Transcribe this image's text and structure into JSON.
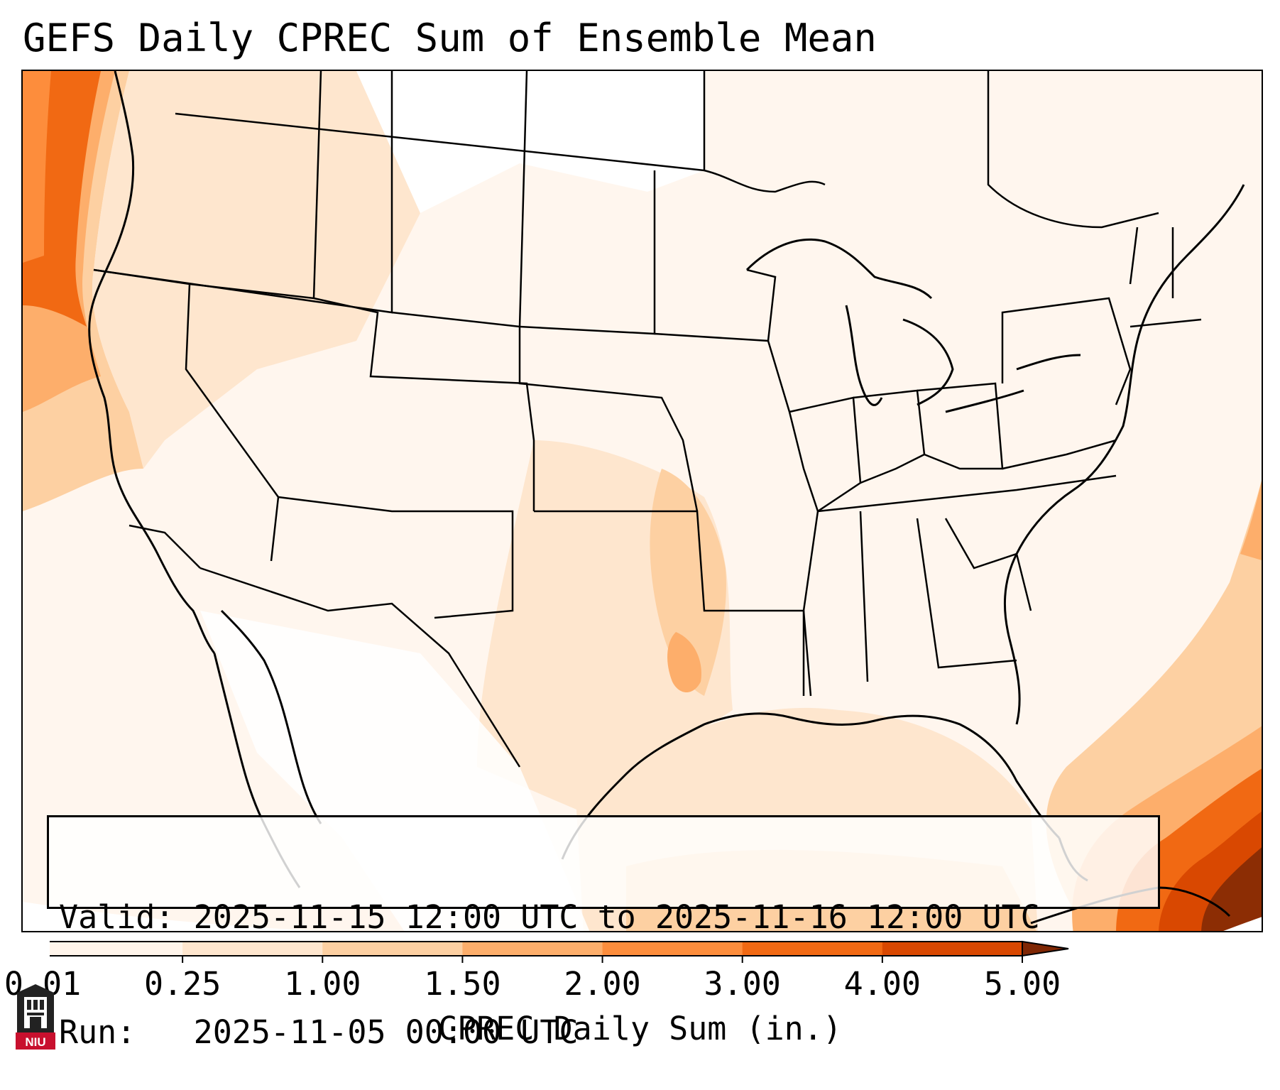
{
  "title": "GEFS Daily CPREC Sum of Ensemble Mean",
  "info": {
    "valid_label": "Valid:",
    "valid_value": "2025-11-15 12:00 UTC to 2025-11-16 12:00 UTC",
    "run_label": "Run:",
    "run_value": "2025-11-05 00:00 UTC"
  },
  "colorbar": {
    "label": "CPREC Daily Sum (in.)",
    "ticks": [
      "0.01",
      "0.25",
      "1.00",
      "1.50",
      "2.00",
      "3.00",
      "4.00",
      "5.00"
    ],
    "colors": [
      "#fff5eb",
      "#fee6ce",
      "#fdd0a2",
      "#fdae6b",
      "#fd8d3c",
      "#f16913",
      "#d94801",
      "#8c2d04"
    ],
    "under_color": "#ffffff",
    "over_color": "#7f2704"
  },
  "logo": {
    "text": "NIU",
    "color": "#c8102e"
  }
}
